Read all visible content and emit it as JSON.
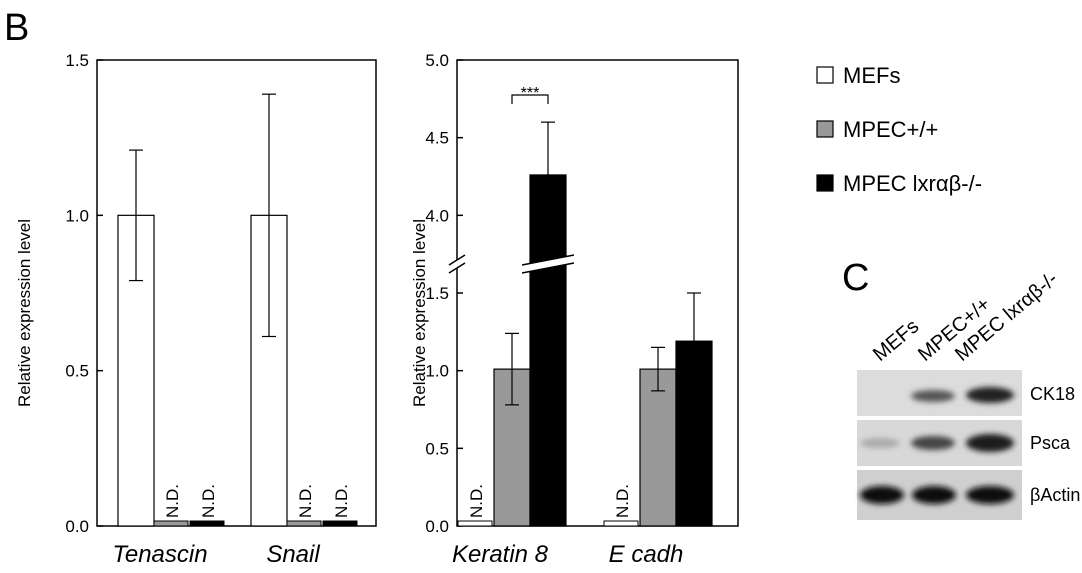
{
  "panel_labels": [
    "B",
    "C"
  ],
  "chart_data": [
    {
      "type": "bar",
      "ylabel": "Relative expression level",
      "categories": [
        "Tenascin",
        "Snail"
      ],
      "ylim": [
        0,
        1.5
      ],
      "yticks": [
        {
          "value": 0,
          "label": "0.0"
        },
        {
          "value": 0.5,
          "label": "0.5"
        },
        {
          "value": 1,
          "label": "1.0"
        },
        {
          "value": 1.5,
          "label": "1.5"
        }
      ],
      "series": [
        {
          "name": "MEFs",
          "color": "#ffffff",
          "values": [
            1.0,
            1.0
          ],
          "errors": [
            0.21,
            0.39
          ]
        },
        {
          "name": "MPEC+/+",
          "color": "#999999",
          "values": [
            null,
            null
          ],
          "value_labels": [
            "N.D.",
            "N.D."
          ]
        },
        {
          "name": "MPEC lxrαβ-/-",
          "color": "#000000",
          "values": [
            null,
            null
          ],
          "value_labels": [
            "N.D.",
            "N.D."
          ]
        }
      ]
    },
    {
      "type": "bar",
      "ylabel": "Relative expression level",
      "categories": [
        "Keratin 8",
        "E cadh"
      ],
      "ylim": [
        0,
        5
      ],
      "ybreak": [
        1.5,
        3.5
      ],
      "yticks": [
        {
          "value": 0,
          "label": "0.0"
        },
        {
          "value": 0.5,
          "label": "0.5"
        },
        {
          "value": 1,
          "label": "1.0"
        },
        {
          "value": 1.5,
          "label": "1.5"
        },
        {
          "value": 4,
          "label": "4.0"
        },
        {
          "value": 4.5,
          "label": "4.5"
        },
        {
          "value": 5,
          "label": "5.0"
        }
      ],
      "significance": "***",
      "series": [
        {
          "name": "MEFs",
          "color": "#ffffff",
          "values": [
            null,
            null
          ],
          "value_labels": [
            "N.D.",
            "N.D."
          ]
        },
        {
          "name": "MPEC+/+",
          "color": "#999999",
          "values": [
            1.01,
            1.01
          ],
          "errors": [
            0.23,
            0.14
          ]
        },
        {
          "name": "MPEC lxrαβ-/-",
          "color": "#000000",
          "values": [
            4.26,
            1.19
          ],
          "errors": [
            0.34,
            0.31
          ]
        }
      ]
    }
  ],
  "blot": {
    "columns": [
      "MEFs",
      "MPEC+/+",
      "MPEC lxrαβ-/-"
    ],
    "rows": [
      "CK18",
      "Psca",
      "βActin"
    ]
  }
}
